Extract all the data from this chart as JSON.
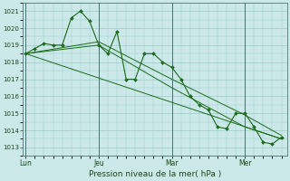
{
  "background_color": "#cce8e8",
  "grid_color": "#99cccc",
  "line_color": "#1a6b1a",
  "marker_color": "#1a6b1a",
  "xlabel": "Pression niveau de la mer( hPa )",
  "ylim": [
    1012.5,
    1021.5
  ],
  "yticks": [
    1013,
    1014,
    1015,
    1016,
    1017,
    1018,
    1019,
    1020,
    1021
  ],
  "xtick_labels": [
    "Lun",
    "Jeu",
    "Mar",
    "Mer"
  ],
  "xtick_positions": [
    0,
    48,
    96,
    144
  ],
  "vline_positions": [
    0,
    48,
    96,
    144
  ],
  "xlim": [
    -2,
    172
  ],
  "series1_x": [
    0,
    6,
    12,
    18,
    24,
    30,
    36,
    42,
    48,
    54,
    60,
    66,
    72,
    78,
    84,
    90,
    96,
    102,
    108,
    114,
    120,
    126,
    132,
    138,
    144,
    150,
    156,
    162,
    168
  ],
  "series1_y": [
    1018.5,
    1018.8,
    1019.1,
    1019.0,
    1019.0,
    1020.6,
    1021.0,
    1020.4,
    1019.0,
    1018.5,
    1019.8,
    1017.0,
    1017.0,
    1018.5,
    1018.5,
    1018.0,
    1017.7,
    1017.0,
    1016.0,
    1015.5,
    1015.2,
    1014.2,
    1014.1,
    1015.0,
    1015.0,
    1014.2,
    1013.3,
    1013.2,
    1013.6
  ],
  "series2_x": [
    0,
    48,
    96,
    144,
    168
  ],
  "series2_y": [
    1018.5,
    1019.0,
    1016.5,
    1014.2,
    1013.5
  ],
  "series3_x": [
    0,
    48,
    96,
    144,
    168
  ],
  "series3_y": [
    1018.5,
    1019.2,
    1017.0,
    1014.9,
    1013.7
  ],
  "series4_x": [
    0,
    168
  ],
  "series4_y": [
    1018.5,
    1013.5
  ]
}
